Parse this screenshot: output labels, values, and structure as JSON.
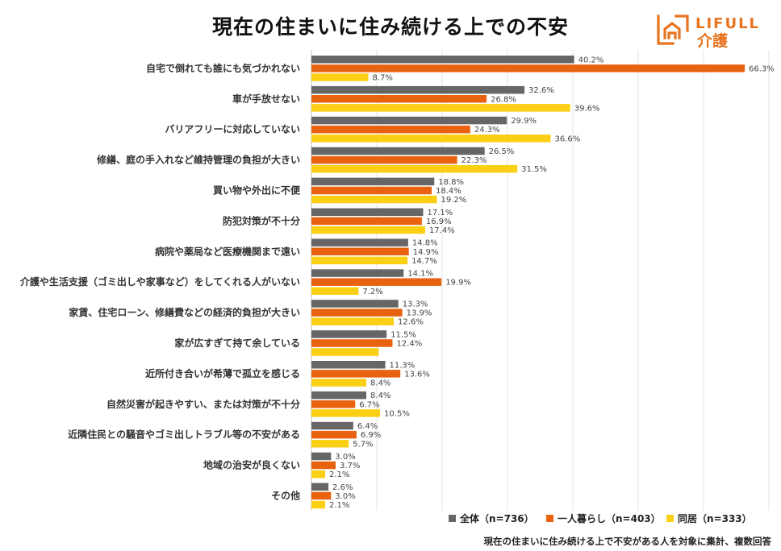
{
  "title": "現在の住まいに住み続ける上での不安",
  "logo": {
    "brand": "LIFULL",
    "sub": "介護",
    "color": "#e8731e"
  },
  "note": "現在の住まいに住み続ける上で不安がある人を対象に集計、複数回答",
  "chart_data": {
    "type": "bar",
    "orientation": "horizontal",
    "title": "現在の住まいに住み続ける上での不安",
    "categories": [
      "自宅で倒れても誰にも気づかれない",
      "車が手放せない",
      "バリアフリーに対応していない",
      "修繕、庭の手入れなど維持管理の負担が大きい",
      "買い物や外出に不便",
      "防犯対策が不十分",
      "病院や薬局など医療機関まで遠い",
      "介護や生活支援（ゴミ出しや家事など）をしてくれる人がいない",
      "家賃、住宅ローン、修繕費などの経済的負担が大きい",
      "家が広すぎて持て余している",
      "近所付き合いが希薄で孤立を感じる",
      "自然災害が起きやすい、または対策が不十分",
      "近隣住民との騒音やゴミ出しトラブル等の不安がある",
      "地域の治安が良くない",
      "その他"
    ],
    "series": [
      {
        "name": "全体（n=736）",
        "color": "#666666",
        "values": [
          40.2,
          32.6,
          29.9,
          26.5,
          18.8,
          17.1,
          14.8,
          14.1,
          13.3,
          11.5,
          11.3,
          8.4,
          6.4,
          3.0,
          2.6
        ],
        "labels": [
          "40.2%",
          "32.6%",
          "29.9%",
          "26.5%",
          "18.8%",
          "17.1%",
          "14.8%",
          "14.1%",
          "13.3%",
          "11.5%",
          "11.3%",
          "8.4%",
          "6.4%",
          "3.0%",
          "2.6%"
        ]
      },
      {
        "name": "一人暮らし（n=403）",
        "color": "#e8620f",
        "values": [
          66.3,
          26.8,
          24.3,
          22.3,
          18.4,
          16.9,
          14.9,
          19.9,
          13.9,
          12.4,
          13.6,
          6.7,
          6.9,
          3.7,
          3.0
        ],
        "labels": [
          "66.3%",
          "26.8%",
          "24.3%",
          "22.3%",
          "18.4%",
          "16.9%",
          "14.9%",
          "19.9%",
          "13.9%",
          "12.4%",
          "13.6%",
          "6.7%",
          "6.9%",
          "3.7%",
          "3.0%"
        ]
      },
      {
        "name": "同居（n=333）",
        "color": "#fbd014",
        "values": [
          8.7,
          39.6,
          36.6,
          31.5,
          19.2,
          17.4,
          14.7,
          7.2,
          12.6,
          10.3,
          8.4,
          10.5,
          5.7,
          2.1,
          2.1
        ],
        "labels": [
          "8.7%",
          "39.6%",
          "36.6%",
          "31.5%",
          "19.2%",
          "17.4%",
          "14.7%",
          "7.2%",
          "12.6%",
          "",
          "8.4%",
          "10.5%",
          "5.7%",
          "2.1%",
          "2.1%"
        ]
      }
    ],
    "xlim": [
      0,
      70
    ],
    "grid": true,
    "legend": "bottom-right"
  }
}
